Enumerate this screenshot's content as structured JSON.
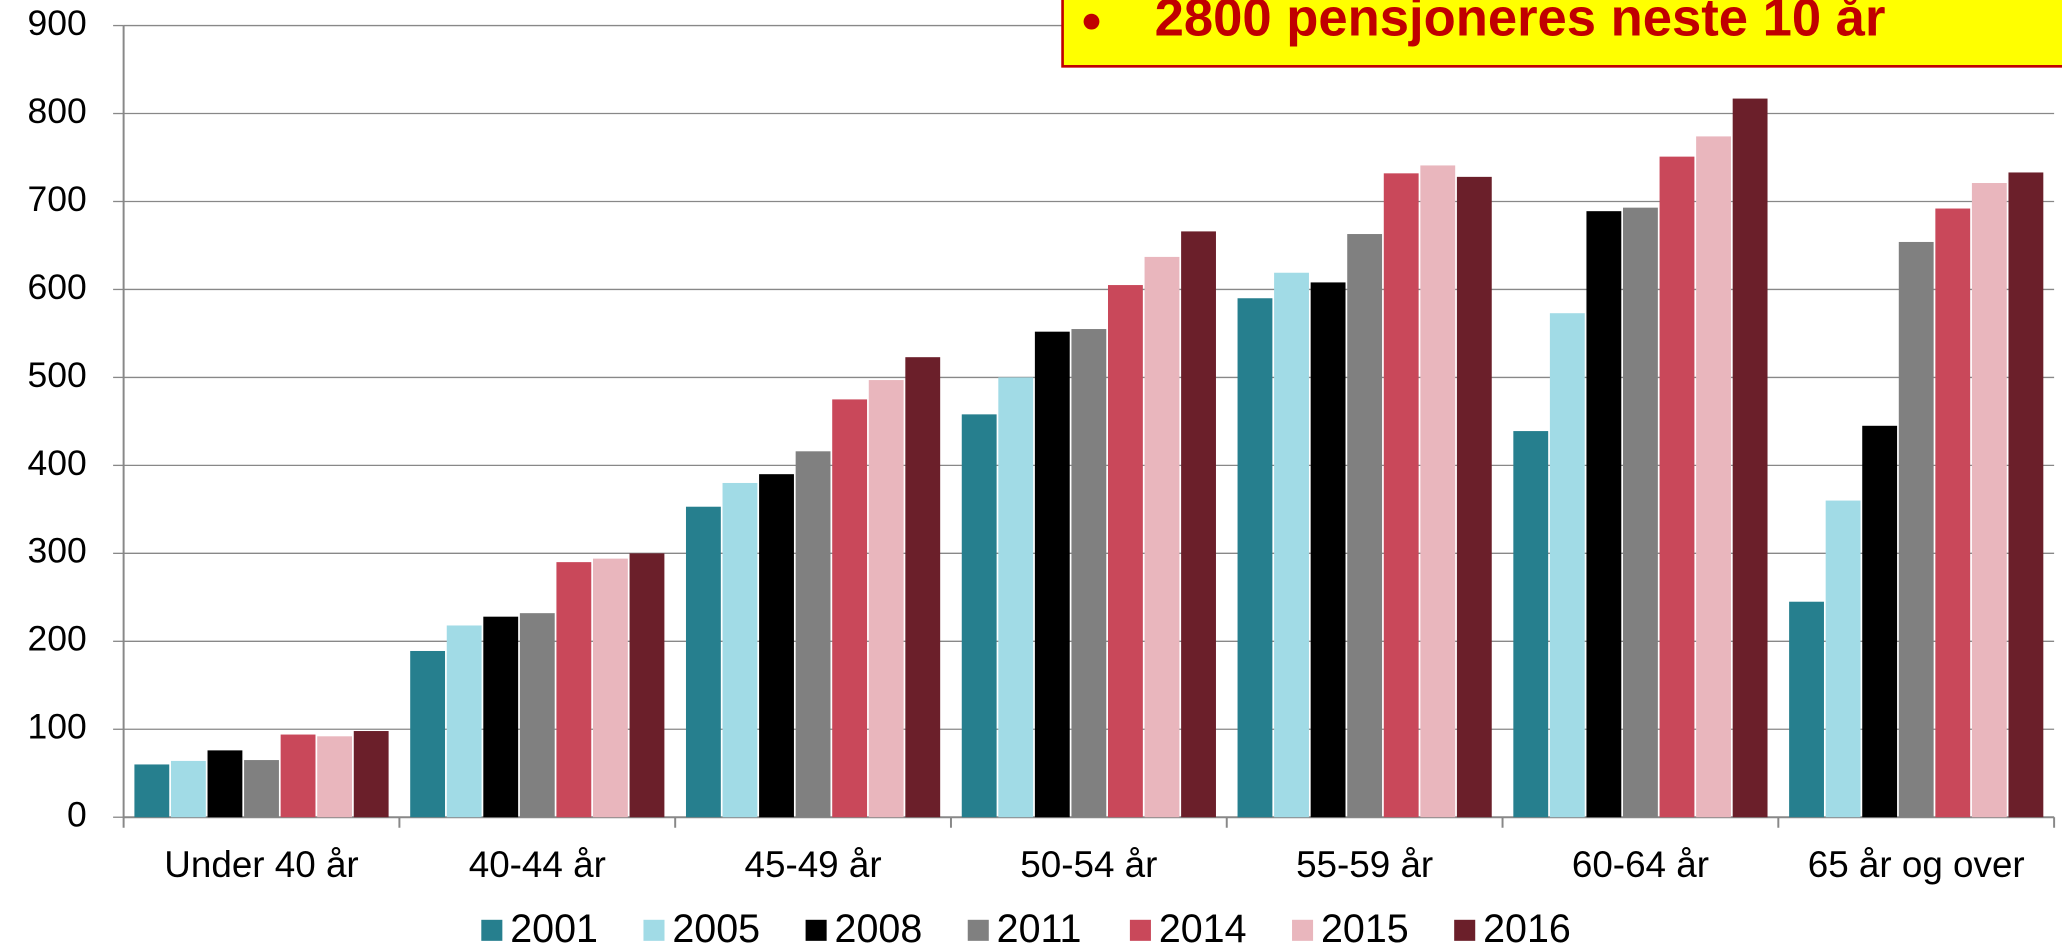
{
  "chart_data": {
    "type": "bar",
    "annotation": "2800 pensjoneres neste 10 år",
    "categories": [
      "Under 40 år",
      "40-44 år",
      "45-49 år",
      "50-54 år",
      "55-59 år",
      "60-64 år",
      "65 år og over"
    ],
    "series": [
      {
        "name": "2001",
        "color": "#267f8e",
        "values": [
          60,
          189,
          353,
          458,
          590,
          439,
          245
        ]
      },
      {
        "name": "2005",
        "color": "#a1dbe6",
        "values": [
          64,
          218,
          380,
          500,
          619,
          573,
          360
        ]
      },
      {
        "name": "2008",
        "color": "#000000",
        "values": [
          76,
          228,
          390,
          552,
          608,
          689,
          445
        ]
      },
      {
        "name": "2011",
        "color": "#808080",
        "values": [
          65,
          232,
          416,
          555,
          663,
          693,
          654
        ]
      },
      {
        "name": "2014",
        "color": "#c9485a",
        "values": [
          94,
          290,
          475,
          605,
          732,
          751,
          692
        ]
      },
      {
        "name": "2015",
        "color": "#e9b6bd",
        "values": [
          92,
          294,
          497,
          637,
          741,
          774,
          721
        ]
      },
      {
        "name": "2016",
        "color": "#6b1f2a",
        "values": [
          98,
          300,
          523,
          666,
          728,
          817,
          733
        ]
      }
    ],
    "ylim": [
      0,
      900
    ],
    "yticks": [
      0,
      100,
      200,
      300,
      400,
      500,
      600,
      700,
      800,
      900
    ],
    "grid": true,
    "legend": "bottom"
  }
}
